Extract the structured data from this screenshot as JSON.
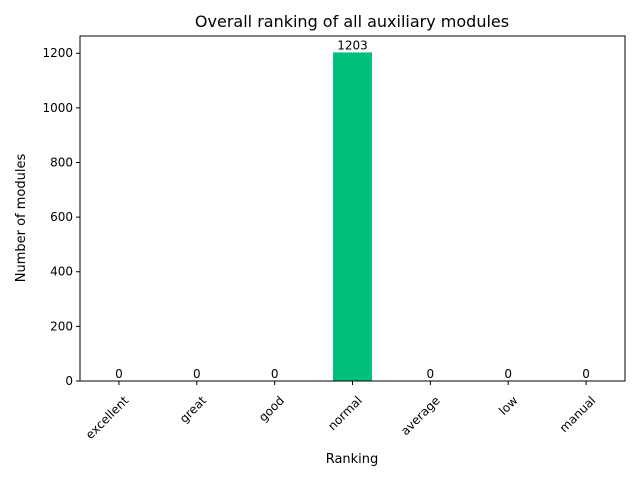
{
  "chart_data": {
    "type": "bar",
    "title": "Overall ranking of all auxiliary modules",
    "xlabel": "Ranking",
    "ylabel": "Number of modules",
    "categories": [
      "excellent",
      "great",
      "good",
      "normal",
      "average",
      "low",
      "manual"
    ],
    "values": [
      0,
      0,
      0,
      1203,
      0,
      0,
      0
    ],
    "ylim": [
      0,
      1263.15
    ],
    "yticks": [
      0,
      200,
      400,
      600,
      800,
      1000,
      1200
    ],
    "bar_color": "#00bf7a",
    "grid": false,
    "legend": "none",
    "data_labels": true
  }
}
